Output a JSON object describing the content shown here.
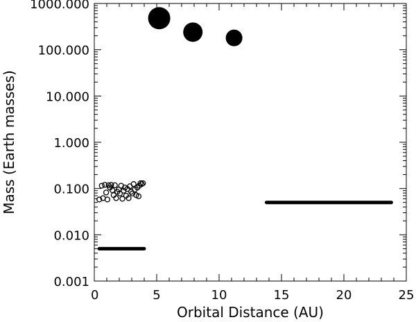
{
  "chart_data": {
    "type": "scatter",
    "xlabel": "Orbital Distance (AU)",
    "ylabel": "Mass (Earth masses)",
    "xlim": [
      0,
      25
    ],
    "ylim": [
      0.001,
      1000
    ],
    "yscale": "log",
    "grid": false,
    "x_ticks": [
      "0",
      "5",
      "10",
      "15",
      "20",
      "25"
    ],
    "y_ticks": [
      "0.001",
      "0.010",
      "0.100",
      "1.000",
      "10.000",
      "100.000",
      "1000.000"
    ],
    "series": [
      {
        "marker": "filled-circle-large",
        "points": [
          {
            "x": 5.2,
            "y": 480
          },
          {
            "x": 7.9,
            "y": 240
          },
          {
            "x": 11.2,
            "y": 180
          }
        ]
      },
      {
        "marker": "open-circle-small",
        "points": [
          {
            "x": 0.4,
            "y": 0.058
          },
          {
            "x": 0.6,
            "y": 0.115
          },
          {
            "x": 0.7,
            "y": 0.062
          },
          {
            "x": 0.85,
            "y": 0.12
          },
          {
            "x": 0.95,
            "y": 0.082
          },
          {
            "x": 1.05,
            "y": 0.058
          },
          {
            "x": 1.15,
            "y": 0.118
          },
          {
            "x": 1.25,
            "y": 0.105
          },
          {
            "x": 1.35,
            "y": 0.12
          },
          {
            "x": 1.45,
            "y": 0.092
          },
          {
            "x": 1.55,
            "y": 0.072
          },
          {
            "x": 1.65,
            "y": 0.118
          },
          {
            "x": 1.75,
            "y": 0.062
          },
          {
            "x": 1.85,
            "y": 0.085
          },
          {
            "x": 1.95,
            "y": 0.095
          },
          {
            "x": 2.05,
            "y": 0.078
          },
          {
            "x": 2.15,
            "y": 0.115
          },
          {
            "x": 2.25,
            "y": 0.06
          },
          {
            "x": 2.35,
            "y": 0.09
          },
          {
            "x": 2.45,
            "y": 0.105
          },
          {
            "x": 2.55,
            "y": 0.07
          },
          {
            "x": 2.65,
            "y": 0.098
          },
          {
            "x": 2.75,
            "y": 0.062
          },
          {
            "x": 2.85,
            "y": 0.112
          },
          {
            "x": 2.95,
            "y": 0.085
          },
          {
            "x": 3.05,
            "y": 0.078
          },
          {
            "x": 3.15,
            "y": 0.125
          },
          {
            "x": 3.25,
            "y": 0.095
          },
          {
            "x": 3.35,
            "y": 0.072
          },
          {
            "x": 3.45,
            "y": 0.105
          },
          {
            "x": 3.55,
            "y": 0.068
          },
          {
            "x": 3.6,
            "y": 0.115
          },
          {
            "x": 3.7,
            "y": 0.13
          },
          {
            "x": 3.8,
            "y": 0.125
          },
          {
            "x": 3.9,
            "y": 0.13
          }
        ]
      },
      {
        "marker": "line",
        "segment": {
          "x": [
            0.4,
            4.0
          ],
          "y": 0.005
        }
      },
      {
        "marker": "line",
        "segment": {
          "x": [
            13.8,
            23.8
          ],
          "y": 0.05
        }
      }
    ]
  }
}
